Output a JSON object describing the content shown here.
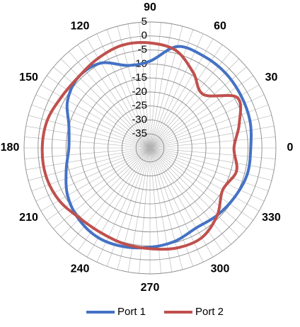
{
  "chart_data": {
    "type": "polar-line",
    "title": "",
    "angle_unit": "degrees",
    "angle_ticks": [
      "0",
      "30",
      "60",
      "90",
      "120",
      "150",
      "180",
      "210",
      "240",
      "270",
      "300",
      "330"
    ],
    "radial_ticks": [
      "5",
      "0",
      "-5",
      "-10",
      "-15",
      "-20",
      "-25",
      "-30",
      "-35"
    ],
    "radial_range": [
      -40,
      5
    ],
    "grid": true,
    "legend_position": "bottom",
    "angles": [
      0,
      15,
      30,
      45,
      60,
      75,
      90,
      105,
      120,
      135,
      150,
      165,
      180,
      195,
      210,
      225,
      240,
      255,
      270,
      285,
      300,
      315,
      330,
      345,
      360
    ],
    "series": [
      {
        "name": "Port 1",
        "color": "#4472C4",
        "values": [
          -4,
          -3,
          -2.5,
          -2,
          -2,
          -2.5,
          -9,
          -9.5,
          -5,
          -4,
          -6,
          -10,
          -11,
          -9,
          -6,
          -4,
          -3,
          -3.5,
          -4.5,
          -5.5,
          -7,
          -6,
          -5,
          -4,
          -4
        ]
      },
      {
        "name": "Port 2",
        "color": "#C0504D",
        "values": [
          -10,
          -7,
          -4,
          -13,
          -9,
          -4,
          -2.5,
          -2,
          -3,
          -4,
          -3.5,
          -2,
          -1.5,
          -1.5,
          -2.5,
          -4.5,
          -5,
          -4.5,
          -4,
          -3,
          -3,
          -6,
          -10,
          -8,
          -10
        ]
      }
    ]
  }
}
